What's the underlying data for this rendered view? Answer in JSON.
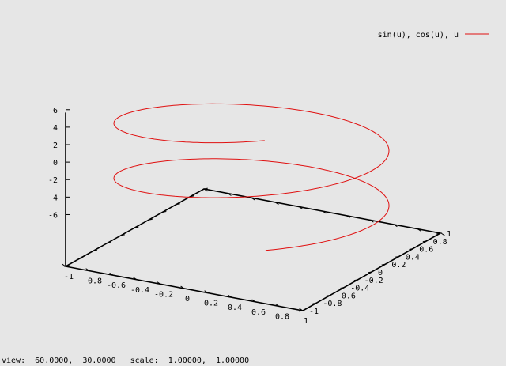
{
  "chart_data": {
    "type": "line",
    "plot_kind": "3d-parametric-curve",
    "title": "",
    "series": [
      {
        "name": "sin(u), cos(u), u",
        "color": "#e01010",
        "x_expr": "sin(u)",
        "y_expr": "cos(u)",
        "z_expr": "u",
        "u_range": [
          -6.28,
          6.28
        ]
      }
    ],
    "axes": {
      "x": {
        "range": [
          -1,
          1
        ],
        "tick_labels": [
          "-1",
          "-0.8",
          "-0.6",
          "-0.4",
          "-0.2",
          "0",
          "0.2",
          "0.4",
          "0.6",
          "0.8",
          "1"
        ]
      },
      "y": {
        "range": [
          -1,
          1
        ],
        "tick_labels": [
          "-1",
          "-0.8",
          "-0.6",
          "-0.4",
          "-0.2",
          "0",
          "0.2",
          "0.4",
          "0.6",
          "0.8",
          "1"
        ]
      },
      "z": {
        "range": [
          -7.2,
          6.4
        ],
        "tick_labels": [
          "6",
          "4",
          "2",
          "0",
          "-2",
          "-4",
          "-6"
        ]
      }
    },
    "grid": false,
    "legend_placement": "top-right"
  },
  "status": {
    "view_label": "view:",
    "view_values": "60.0000,  30.0000",
    "scale_label": "scale:",
    "scale_values": "1.00000,  1.00000"
  }
}
